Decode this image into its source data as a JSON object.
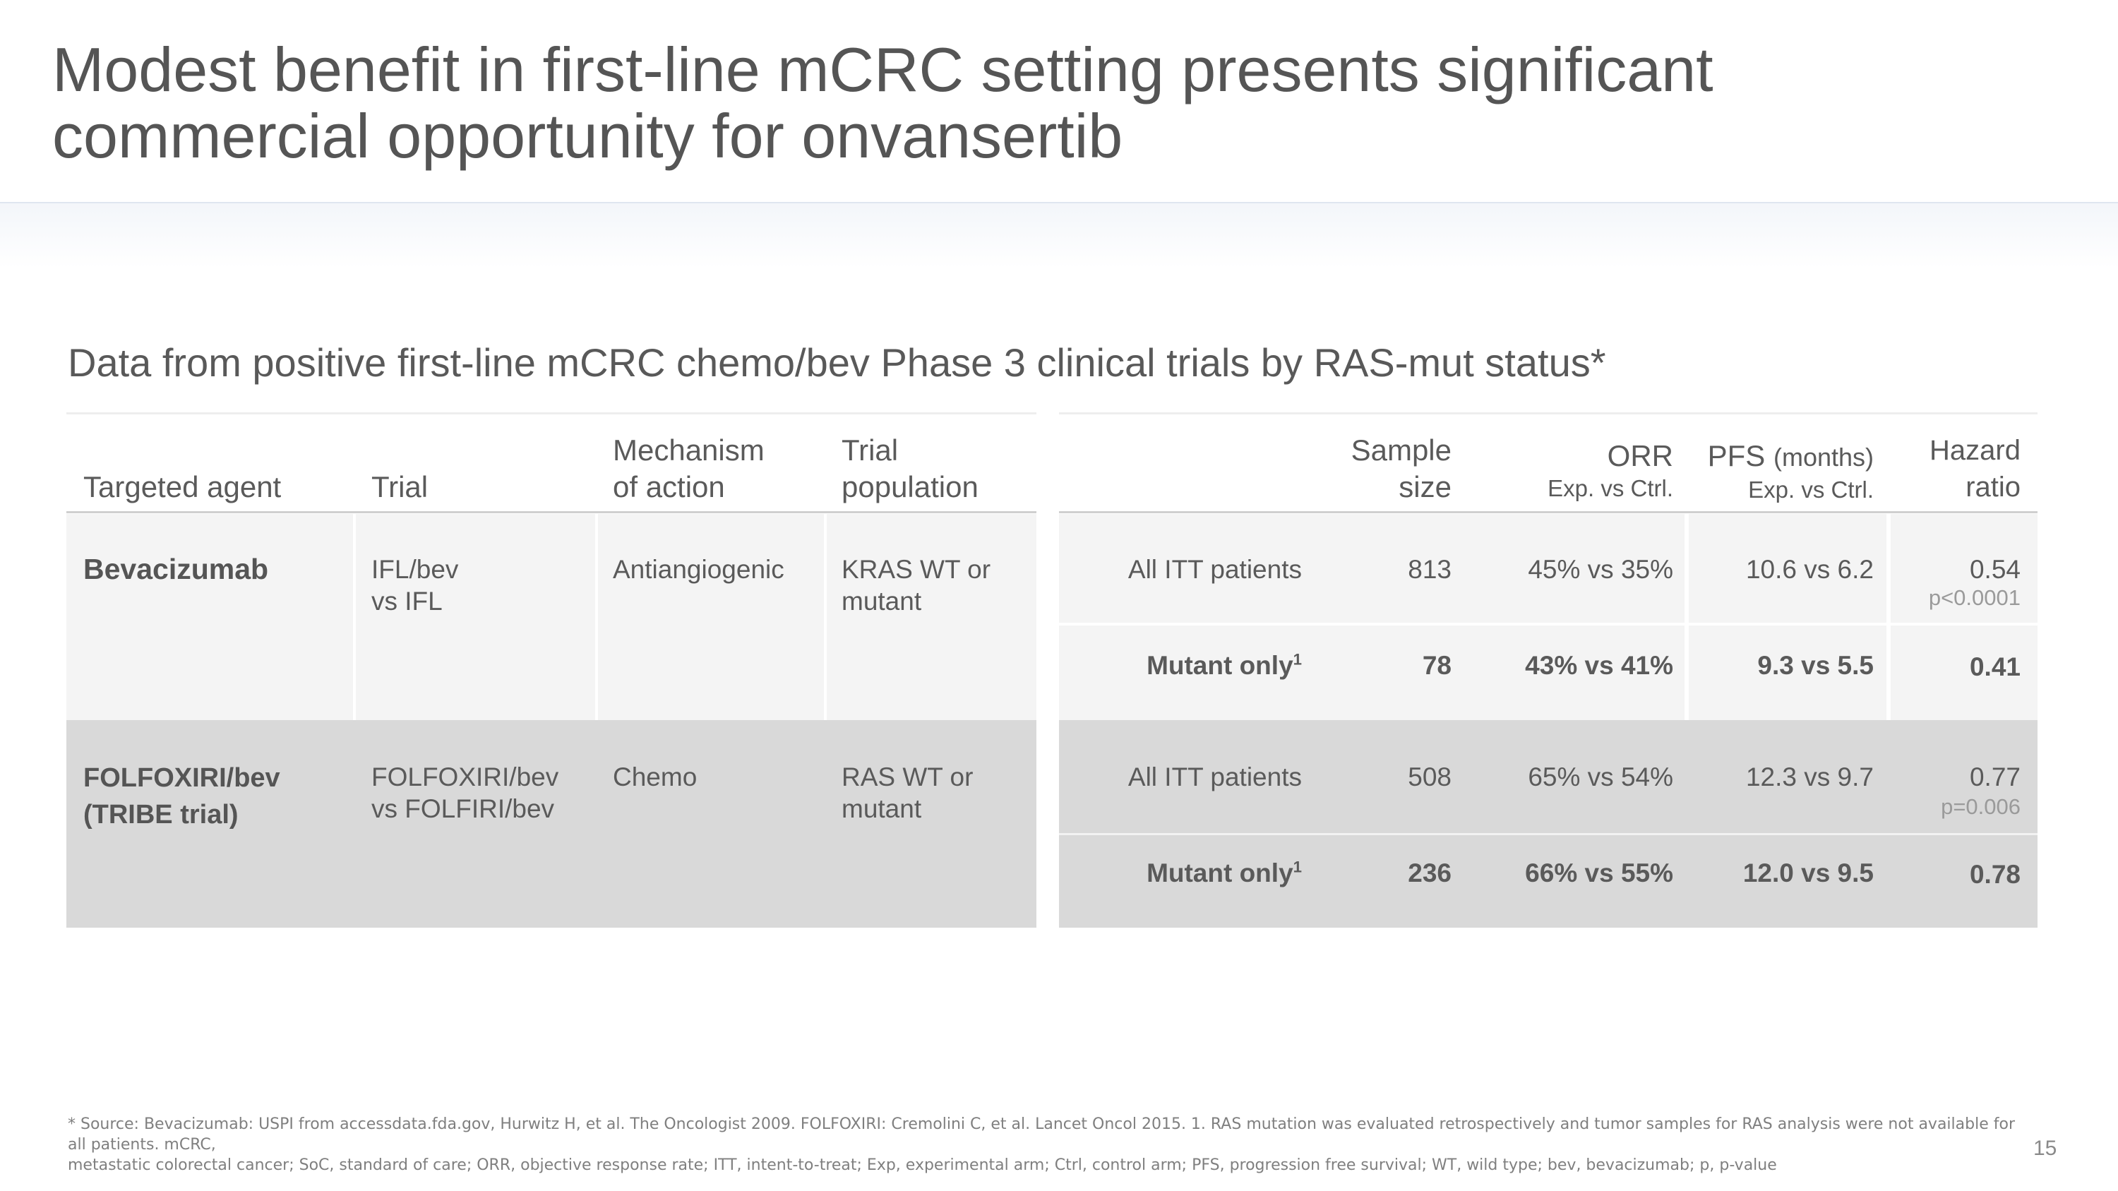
{
  "title": {
    "line1": "Modest benefit in first-line mCRC setting presents significant",
    "line2": "commercial opportunity for onvansertib"
  },
  "subtitle": "Data from positive first-line mCRC chemo/bev Phase 3 clinical trials by RAS-mut status*",
  "left_table": {
    "headers": {
      "agent": "Targeted agent",
      "trial": "Trial",
      "mechanism_1": "Mechanism",
      "mechanism_2": "of action",
      "population_1": "Trial",
      "population_2": "population"
    },
    "rows": [
      {
        "agent": "Bevacizumab",
        "trial_1": "IFL/bev",
        "trial_2": "vs IFL",
        "mechanism": "Antiangiogenic",
        "population_1": "KRAS WT or",
        "population_2": "mutant"
      },
      {
        "agent_1": "FOLFOXIRI/bev",
        "agent_2": "(TRIBE trial)",
        "trial_1": "FOLFOXIRI/bev",
        "trial_2": "vs FOLFIRI/bev",
        "mechanism": "Chemo",
        "population_1": "RAS WT or",
        "population_2": "mutant"
      }
    ]
  },
  "right_table": {
    "headers": {
      "sample_1": "Sample",
      "sample_2": "size",
      "orr": "ORR",
      "orr_sub": "Exp. vs Ctrl.",
      "pfs": "PFS",
      "pfs_unit": "(months)",
      "pfs_sub": "Exp. vs Ctrl.",
      "hr_1": "Hazard",
      "hr_2": "ratio"
    },
    "rows": [
      {
        "group": "All ITT patients",
        "n": "813",
        "orr": "45% vs 35%",
        "pfs": "10.6 vs 6.2",
        "hr": "0.54",
        "p": "p<0.0001"
      },
      {
        "group": "Mutant only",
        "sup": "1",
        "n": "78",
        "orr": "43% vs 41%",
        "pfs": "9.3 vs 5.5",
        "hr": "0.41"
      },
      {
        "group": "All ITT patients",
        "n": "508",
        "orr": "65% vs 54%",
        "pfs": "12.3 vs 9.7",
        "hr": "0.77",
        "p": "p=0.006"
      },
      {
        "group": "Mutant only",
        "sup": "1",
        "n": "236",
        "orr": "66% vs 55%",
        "pfs": "12.0 vs 9.5",
        "hr": "0.78"
      }
    ]
  },
  "footnote": {
    "line1": "* Source: Bevacizumab: USPI from accessdata.fda.gov, Hurwitz H, et al. The Oncologist 2009. FOLFOXIRI: Cremolini C, et al. Lancet Oncol 2015.  1. RAS mutation was evaluated retrospectively and tumor samples for RAS analysis were not available for all patients. mCRC,",
    "line2": "metastatic colorectal cancer; SoC, standard of care; ORR, objective response rate; ITT, intent-to-treat; Exp, experimental arm; Ctrl, control arm; PFS, progression free survival; WT, wild type; bev, bevacizumab; p, p-value"
  },
  "page_number": "15",
  "colors": {
    "row_light": "#f4f4f4",
    "row_dark": "#d9d9d9",
    "text": "#555555"
  }
}
